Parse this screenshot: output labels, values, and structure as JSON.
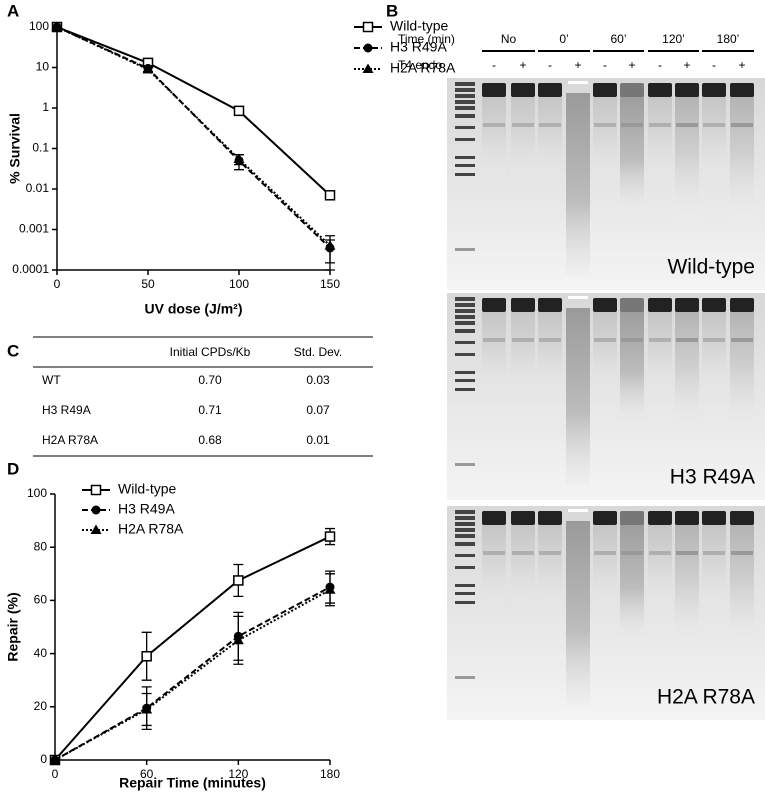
{
  "panel_labels": [
    "A",
    "B",
    "C",
    "D"
  ],
  "chart_data": [
    {
      "type": "line",
      "y_label": "% Survival",
      "x_label": "UV dose (J/m²)",
      "ylog": true,
      "x": [
        0,
        50,
        100,
        150
      ],
      "xlim": [
        0,
        150
      ],
      "xticks": [
        0,
        50,
        100,
        150
      ],
      "ylim": [
        0.0001,
        100
      ],
      "yticks": [
        0.0001,
        0.001,
        0.01,
        0.1,
        1,
        10,
        100
      ],
      "legend": "upper right",
      "series": [
        {
          "name": "Wild-type",
          "color": "#000000",
          "marker": "square-open",
          "dash": "solid",
          "values": [
            100,
            13,
            0.85,
            0.007
          ]
        },
        {
          "name": "H3 R49A",
          "color": "#000000",
          "marker": "circle",
          "dash": "dashed",
          "values": [
            100,
            9.5,
            0.05,
            0.00035
          ],
          "errors": [
            0,
            1.5,
            0.02,
            0.0002
          ]
        },
        {
          "name": "H2A R78A",
          "color": "#000000",
          "marker": "triangle",
          "dash": "dotted",
          "values": [
            100,
            9,
            0.055,
            0.0004
          ],
          "errors": [
            0,
            1.5,
            0.015,
            0.0003
          ]
        }
      ]
    },
    {
      "type": "line",
      "y_label": "Repair (%)",
      "x_label": "Repair Time (minutes)",
      "ylog": false,
      "x": [
        0,
        60,
        120,
        180
      ],
      "xlim": [
        0,
        180
      ],
      "xticks": [
        0,
        60,
        120,
        180
      ],
      "ylim": [
        0,
        100
      ],
      "yticks": [
        0,
        20,
        40,
        60,
        80,
        100
      ],
      "legend": "upper left",
      "series": [
        {
          "name": "Wild-type",
          "color": "#000000",
          "marker": "square-open",
          "dash": "solid",
          "values": [
            0,
            39,
            67.5,
            84
          ],
          "errors": [
            0,
            9,
            6,
            3
          ]
        },
        {
          "name": "H3 R49A",
          "color": "#000000",
          "marker": "circle",
          "dash": "dashed",
          "values": [
            0,
            19.5,
            46.5,
            65
          ],
          "errors": [
            0,
            8,
            9,
            6
          ]
        },
        {
          "name": "H2A R78A",
          "color": "#000000",
          "marker": "triangle",
          "dash": "dotted",
          "values": [
            0,
            19,
            45,
            64
          ],
          "errors": [
            0,
            6,
            9,
            6
          ]
        }
      ]
    }
  ],
  "gel": {
    "time_label": "Time (min)",
    "endo_label": "T4 endo",
    "groups": [
      {
        "time": "No",
        "endo": [
          "-",
          "+"
        ]
      },
      {
        "time": "0’",
        "endo": [
          "-",
          "+"
        ]
      },
      {
        "time": "60’",
        "endo": [
          "-",
          "+"
        ]
      },
      {
        "time": "120’",
        "endo": [
          "-",
          "+"
        ]
      },
      {
        "time": "180’",
        "endo": [
          "-",
          "+"
        ]
      }
    ],
    "strains": [
      "Wild-type",
      "H3 R49A",
      "H2A R78A"
    ]
  },
  "table": {
    "headers": [
      "Initial CPDs/Kb",
      "Std. Dev."
    ],
    "rows": [
      [
        "WT",
        "0.70",
        "0.03"
      ],
      [
        "H3 R49A",
        "0.71",
        "0.07"
      ],
      [
        "H2A R78A",
        "0.68",
        "0.01"
      ]
    ]
  }
}
